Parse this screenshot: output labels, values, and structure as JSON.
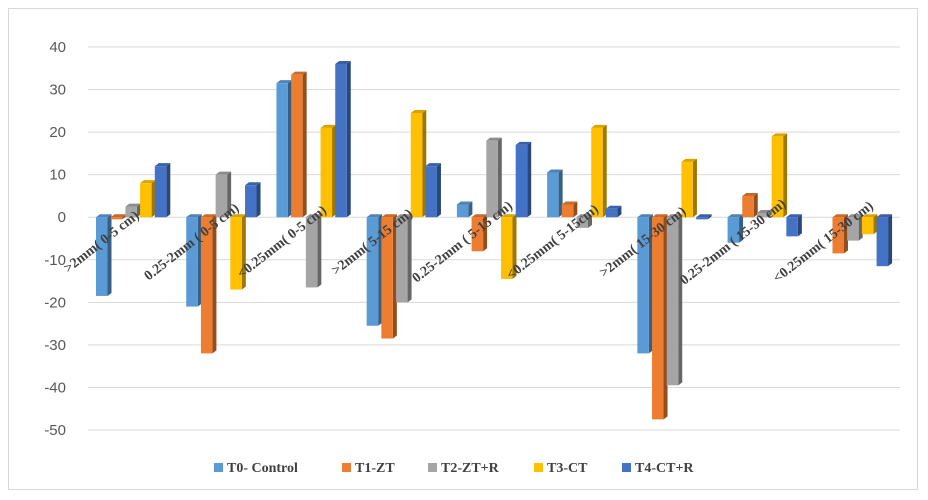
{
  "chart_data": {
    "type": "bar",
    "title": "",
    "xlabel": "",
    "ylabel": "",
    "ylim": [
      -50,
      40
    ],
    "yticks": [
      40,
      30,
      20,
      10,
      0,
      -10,
      -20,
      -30,
      -40,
      -50
    ],
    "grid": true,
    "legend_position": "bottom",
    "categories": [
      ">2mm( 0-5 cm)",
      "0.25-2mm ( 0-5 cm)",
      "<0.25mm( 0-5 cm)",
      ">2mm( 5-15 cm)",
      "0.25-2mm ( 5-15 cm)",
      "<0.25mm( 5-15cm)",
      ">2mm( 15-30 cm)",
      "0.25-2mm ( 15-30 cm)",
      "<0.25mm( 15-30 cm)"
    ],
    "series": [
      {
        "name": "T0- Control",
        "color": "#5B9BD5",
        "values": [
          -18.5,
          -21,
          31.5,
          -25.5,
          3,
          10.5,
          -32,
          -6,
          0
        ]
      },
      {
        "name": "T1-ZT",
        "color": "#ED7D31",
        "values": [
          -0.5,
          -32,
          33.5,
          -28.5,
          -8,
          3,
          -47.5,
          5,
          -8.5
        ]
      },
      {
        "name": "T2-ZT+R",
        "color": "#A5A5A5",
        "values": [
          2.5,
          10,
          -16.5,
          -20,
          18,
          -2.5,
          -39.5,
          1,
          -5.5
        ]
      },
      {
        "name": "T3-CT",
        "color": "#FFC000",
        "values": [
          8,
          -17,
          21,
          24.5,
          -14.5,
          21,
          13,
          19,
          -4
        ]
      },
      {
        "name": "T4-CT+R",
        "color": "#4472C4",
        "values": [
          12,
          7.5,
          36,
          12,
          17,
          2,
          -0.5,
          -4.5,
          -11.5
        ]
      }
    ]
  }
}
